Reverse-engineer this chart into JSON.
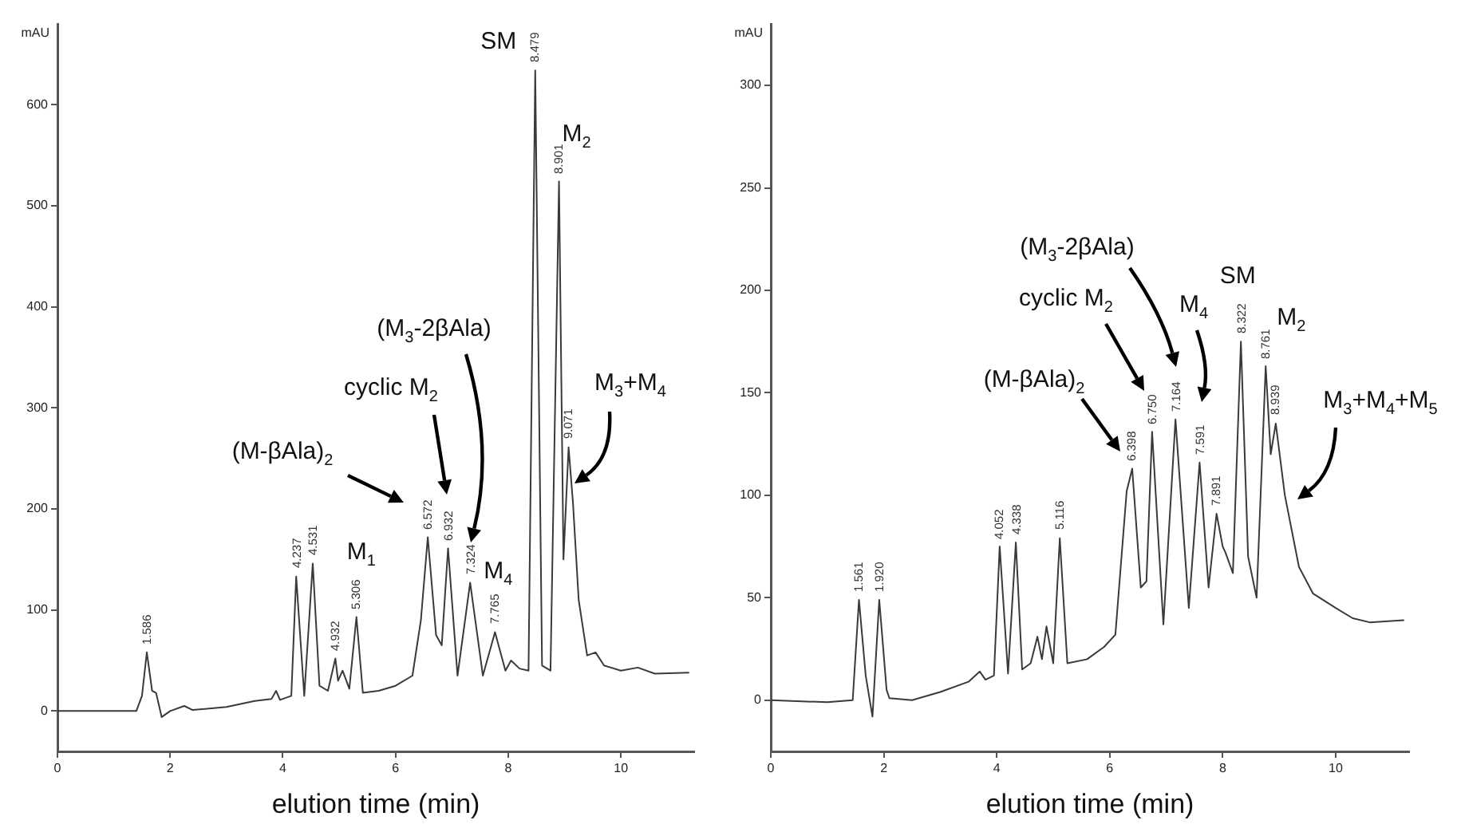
{
  "chart_data": [
    {
      "type": "line",
      "xlabel": "elution time (min)",
      "ylabel": "mAU",
      "xlim": [
        0,
        11.3
      ],
      "xticks": [
        0,
        2,
        4,
        6,
        8,
        10
      ],
      "ylim": [
        -40,
        680
      ],
      "yticks": [
        0,
        100,
        200,
        300,
        400,
        500,
        600
      ],
      "grid": false,
      "legend": false,
      "series": [
        {
          "color": "#3a3a3a",
          "x": [
            0,
            1.4,
            1.5,
            1.586,
            1.68,
            1.75,
            1.85,
            2.0,
            2.25,
            2.4,
            3.0,
            3.5,
            3.8,
            3.88,
            3.95,
            4.15,
            4.237,
            4.38,
            4.531,
            4.65,
            4.8,
            4.932,
            4.98,
            5.06,
            5.18,
            5.306,
            5.42,
            5.7,
            6.0,
            6.3,
            6.45,
            6.572,
            6.72,
            6.82,
            6.932,
            7.1,
            7.324,
            7.55,
            7.765,
            7.95,
            8.05,
            8.2,
            8.36,
            8.479,
            8.6,
            8.75,
            8.901,
            8.98,
            9.071,
            9.15,
            9.25,
            9.4,
            9.55,
            9.7,
            10.0,
            10.3,
            10.6,
            11.2
          ],
          "values": [
            0,
            0,
            15,
            58,
            20,
            18,
            -6,
            0,
            5,
            1,
            4,
            10,
            12,
            20,
            11,
            15,
            133,
            15,
            146,
            25,
            20,
            52,
            30,
            40,
            22,
            93,
            18,
            20,
            25,
            35,
            90,
            172,
            75,
            65,
            161,
            35,
            127,
            35,
            78,
            40,
            50,
            42,
            40,
            634,
            45,
            40,
            524,
            150,
            261,
            205,
            110,
            55,
            58,
            45,
            40,
            43,
            37,
            38
          ]
        }
      ],
      "annotations": [
        {
          "text": "SM",
          "x": 8.479,
          "y": 634
        },
        {
          "text": "M$_{2}$",
          "x": 8.901,
          "y": 524
        },
        "M$_{3}$+M$_{4}$",
        "(M$_{3}$-2βAla)",
        "cyclic M$_{2}$",
        "(M-βAla)$_{2}$",
        {
          "text": "M$_{1}$",
          "x": 5.306,
          "y": 93
        },
        {
          "text": "M$_{4}$",
          "x": 7.765,
          "y": 78
        },
        {
          "text": "1.586",
          "x": 1.586,
          "y": 58
        },
        {
          "text": "4.237",
          "x": 4.237,
          "y": 133
        },
        {
          "text": "4.531",
          "x": 4.531,
          "y": 146
        },
        {
          "text": "4.932",
          "x": 4.932,
          "y": 52
        },
        {
          "text": "5.306",
          "x": 5.306,
          "y": 93
        },
        {
          "text": "6.572",
          "x": 6.572,
          "y": 172
        },
        {
          "text": "6.932",
          "x": 6.932,
          "y": 161
        },
        {
          "text": "7.324",
          "x": 7.324,
          "y": 127
        },
        {
          "text": "7.765",
          "x": 7.765,
          "y": 78
        },
        {
          "text": "8.479",
          "x": 8.479,
          "y": 634
        },
        {
          "text": "8.901",
          "x": 8.901,
          "y": 524
        },
        {
          "text": "9.071",
          "x": 9.071,
          "y": 261
        }
      ]
    },
    {
      "type": "line",
      "xlabel": "elution time (min)",
      "ylabel": "mAU",
      "xlim": [
        0,
        11.3
      ],
      "xticks": [
        0,
        2,
        4,
        6,
        8,
        10
      ],
      "ylim": [
        -25,
        330
      ],
      "yticks": [
        0,
        50,
        100,
        150,
        200,
        250,
        300
      ],
      "grid": false,
      "legend": false,
      "series": [
        {
          "color": "#3a3a3a",
          "x": [
            0,
            1.0,
            1.45,
            1.561,
            1.68,
            1.8,
            1.92,
            2.05,
            2.1,
            2.5,
            3.0,
            3.5,
            3.7,
            3.8,
            3.95,
            4.052,
            4.2,
            4.338,
            4.45,
            4.6,
            4.72,
            4.8,
            4.88,
            5.0,
            5.116,
            5.25,
            5.6,
            5.9,
            6.1,
            6.3,
            6.398,
            6.55,
            6.65,
            6.75,
            6.95,
            7.164,
            7.4,
            7.591,
            7.75,
            7.891,
            8.0,
            8.05,
            8.18,
            8.322,
            8.45,
            8.6,
            8.761,
            8.85,
            8.939,
            9.1,
            9.35,
            9.6,
            10.0,
            10.3,
            10.6,
            11.2
          ],
          "values": [
            0,
            -1,
            0,
            49,
            12,
            -8,
            49,
            5,
            1,
            0,
            4,
            9,
            14,
            10,
            12,
            75,
            13,
            77,
            15,
            18,
            31,
            20,
            36,
            18,
            79,
            18,
            20,
            26,
            32,
            102,
            113,
            55,
            58,
            131,
            37,
            137,
            45,
            116,
            55,
            91,
            75,
            72,
            62,
            175,
            70,
            50,
            163,
            120,
            135,
            100,
            65,
            52,
            45,
            40,
            38,
            39
          ]
        }
      ],
      "annotations": [
        "(M$_{3}$-2βAla)",
        "cyclic M$_{2}$",
        "(M-βAla)$_{2}$",
        "M$_{4}$",
        {
          "text": "SM",
          "x": 8.322,
          "y": 175
        },
        {
          "text": "M$_{2}$",
          "x": 8.761,
          "y": 163
        },
        "M$_{3}$+M$_{4}$+M$_{5}$",
        {
          "text": "1.561",
          "x": 1.561,
          "y": 49
        },
        {
          "text": "1.920",
          "x": 1.92,
          "y": 49
        },
        {
          "text": "4.052",
          "x": 4.052,
          "y": 75
        },
        {
          "text": "4.338",
          "x": 4.338,
          "y": 77
        },
        {
          "text": "5.116",
          "x": 5.116,
          "y": 79
        },
        {
          "text": "6.398",
          "x": 6.398,
          "y": 113
        },
        {
          "text": "6.750",
          "x": 6.75,
          "y": 131
        },
        {
          "text": "7.164",
          "x": 7.164,
          "y": 137
        },
        {
          "text": "7.591",
          "x": 7.591,
          "y": 116
        },
        {
          "text": "7.891",
          "x": 7.891,
          "y": 91
        },
        {
          "text": "8.322",
          "x": 8.322,
          "y": 175
        },
        {
          "text": "8.761",
          "x": 8.761,
          "y": 163
        },
        {
          "text": "8.939",
          "x": 8.939,
          "y": 135
        }
      ]
    }
  ]
}
